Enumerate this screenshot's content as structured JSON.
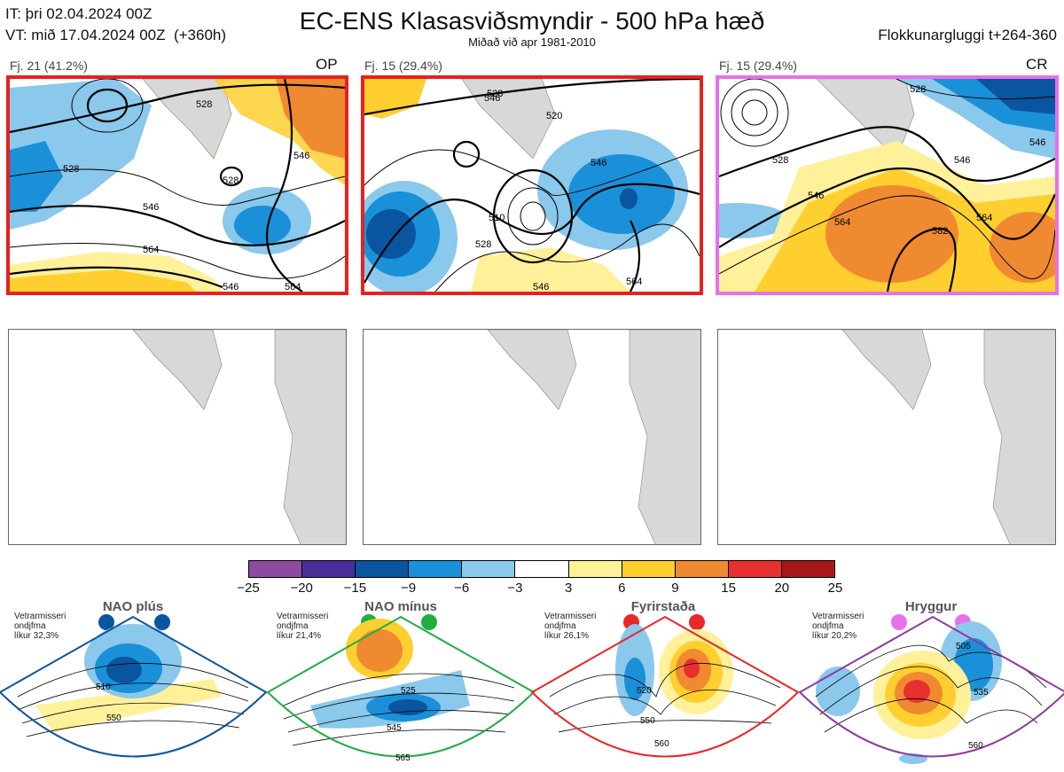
{
  "header": {
    "init_time": "IT: þri 02.04.2024 00Z",
    "valid_time": "VT: mið 17.04.2024 00Z  (+360h)",
    "title": "EC-ENS Klasasviðsmyndir - 500 hPa hæð",
    "subtitle": "Miðað við apr 1981-2010",
    "window": "Flokkunargluggi t+264-360"
  },
  "panels": [
    {
      "label": "Fj. 21 (41.2%)",
      "tag": "OP",
      "border_color": "#e82020",
      "contours": [
        "546",
        "528",
        "528",
        "546",
        "564",
        "546",
        "564",
        "528"
      ]
    },
    {
      "label": "Fj. 15 (29.4%)",
      "tag": "",
      "border_color": "#e82020",
      "contours": [
        "546",
        "528",
        "520",
        "510",
        "546",
        "528",
        "546",
        "564"
      ]
    },
    {
      "label": "Fj. 15 (29.4%)",
      "tag": "CR",
      "border_color": "#e870e8",
      "contours": [
        "528",
        "546",
        "564",
        "582",
        "564",
        "546",
        "528",
        "546"
      ]
    }
  ],
  "colorbar": {
    "ticks": [
      "−25",
      "−20",
      "−15",
      "−9",
      "−6",
      "−3",
      "3",
      "6",
      "9",
      "15",
      "20",
      "25"
    ],
    "colors": [
      "#8e4aa0",
      "#4a2f9a",
      "#0a55a0",
      "#1a90d8",
      "#8ac8ec",
      "#ffffff",
      "#fff09a",
      "#ffcf30",
      "#f08a30",
      "#e83030",
      "#a81818"
    ]
  },
  "regimes": [
    {
      "name": "NAO plús",
      "meta": [
        "Vetrarmisseri",
        "ondjfma",
        "líkur 32,3%"
      ],
      "color": "#0a55a0",
      "contours": [
        "510",
        "550"
      ]
    },
    {
      "name": "NAO mínus",
      "meta": [
        "Vetrarmisseri",
        "ondjfma",
        "líkur 21,4%"
      ],
      "color": "#1fae45",
      "contours": [
        "525",
        "545",
        "565"
      ]
    },
    {
      "name": "Fyrirstaða",
      "meta": [
        "Vetrarmisseri",
        "ondjfma",
        "líkur 26,1%"
      ],
      "color": "#e82828",
      "contours": [
        "520",
        "550",
        "560"
      ]
    },
    {
      "name": "Hryggur",
      "meta": [
        "Vetrarmisseri",
        "ondjfma",
        "líkur 20,2%"
      ],
      "color": "#e870e8",
      "contours": [
        "505",
        "535",
        "560"
      ]
    }
  ]
}
